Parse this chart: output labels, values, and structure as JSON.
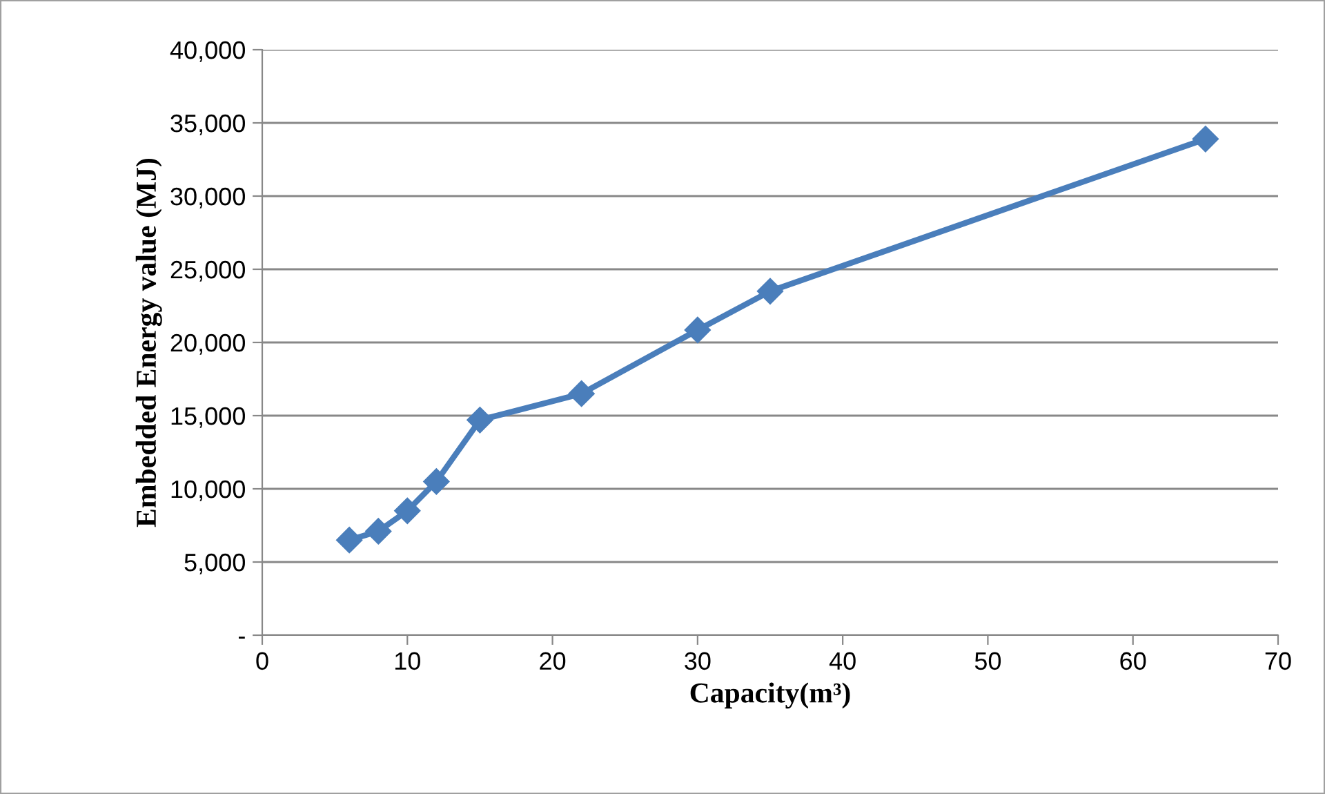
{
  "chart_data": {
    "type": "line",
    "xlabel": "Capacity(m³)",
    "ylabel": "Embedded Energy value (MJ)",
    "x": [
      6,
      8,
      10,
      12,
      15,
      22,
      30,
      35,
      65
    ],
    "series": [
      {
        "color": "#4a7ebb",
        "values": [
          6500,
          7100,
          8500,
          10500,
          14700,
          16500,
          20850,
          23500,
          33900
        ]
      }
    ],
    "xlim": [
      0,
      70
    ],
    "xticks": [
      0,
      10,
      20,
      30,
      40,
      50,
      60,
      70
    ],
    "ylim": [
      0,
      40000
    ],
    "yticks": [
      {
        "value": 0,
        "label": "-"
      },
      {
        "value": 5000,
        "label": "5,000"
      },
      {
        "value": 10000,
        "label": "10,000"
      },
      {
        "value": 15000,
        "label": "15,000"
      },
      {
        "value": 20000,
        "label": "20,000"
      },
      {
        "value": 25000,
        "label": "25,000"
      },
      {
        "value": 30000,
        "label": "30,000"
      },
      {
        "value": 35000,
        "label": "35,000"
      },
      {
        "value": 40000,
        "label": "40,000"
      }
    ],
    "grid": "y",
    "marker": "diamond",
    "line_style": "solid"
  }
}
